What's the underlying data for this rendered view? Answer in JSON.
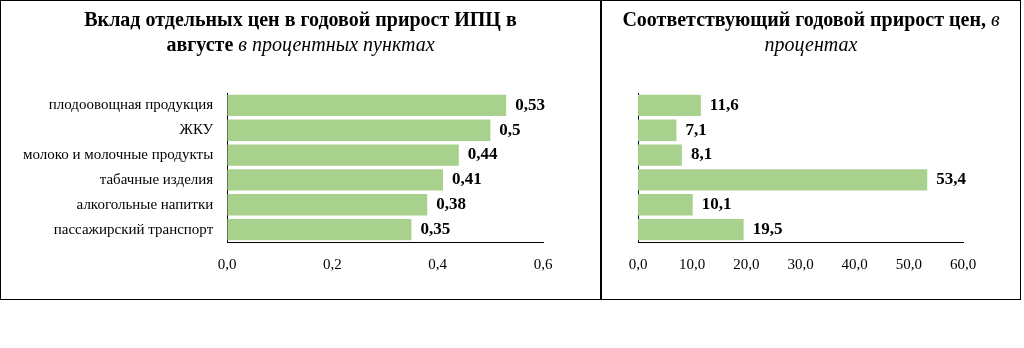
{
  "chart_data": [
    {
      "type": "bar",
      "orientation": "horizontal",
      "title": "Вклад отдельных цен в годовой прирост ИПЦ в августе",
      "subtitle": "в процентных пунктах",
      "categories": [
        "плодоовощная продукция",
        "ЖКУ",
        "молоко и молочные продукты",
        "табачные изделия",
        "алкогольные напитки",
        "пассажирский транспорт"
      ],
      "values": [
        0.53,
        0.5,
        0.44,
        0.41,
        0.38,
        0.35
      ],
      "value_labels": [
        "0,53",
        "0,5",
        "0,44",
        "0,41",
        "0,38",
        "0,35"
      ],
      "color": "#a9d18e",
      "xlim": [
        0,
        0.6
      ],
      "xticks": [
        {
          "value": 0,
          "label": "0,0"
        },
        {
          "value": 0.2,
          "label": "0,2"
        },
        {
          "value": 0.4,
          "label": "0,4"
        },
        {
          "value": 0.6,
          "label": "0,6"
        }
      ],
      "grid": false,
      "legend": false
    },
    {
      "type": "bar",
      "orientation": "horizontal",
      "title": "Соответствующий годовой прирост цен,",
      "subtitle": "в процентах",
      "categories": [
        null,
        null,
        null,
        null,
        null,
        null
      ],
      "values": [
        11.6,
        7.1,
        8.1,
        53.4,
        10.1,
        19.5
      ],
      "value_labels": [
        "11,6",
        "7,1",
        "8,1",
        "53,4",
        "10,1",
        "19,5"
      ],
      "color": "#a9d18e",
      "xlim": [
        0,
        60
      ],
      "xticks": [
        {
          "value": 0,
          "label": "0,0"
        },
        {
          "value": 10,
          "label": "10,0"
        },
        {
          "value": 20,
          "label": "20,0"
        },
        {
          "value": 30,
          "label": "30,0"
        },
        {
          "value": 40,
          "label": "40,0"
        },
        {
          "value": 50,
          "label": "50,0"
        },
        {
          "value": 60,
          "label": "60,0"
        }
      ],
      "grid": false,
      "legend": false
    }
  ]
}
